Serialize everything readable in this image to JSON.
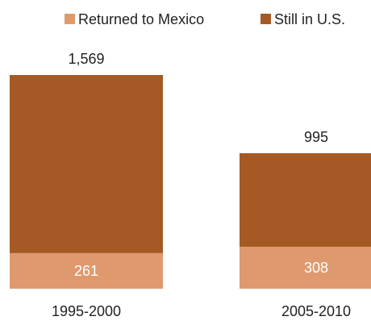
{
  "colors": {
    "returned": "#DE9A6E",
    "still": "#A55A26",
    "text": "#222222",
    "inside_text": "#FFFFFF"
  },
  "chart_data": {
    "type": "bar",
    "stacked": true,
    "categories": [
      "1995-2000",
      "2005-2010"
    ],
    "series": [
      {
        "name": "Returned to Mexico",
        "values": [
          261,
          308
        ]
      },
      {
        "name": "Still in U.S.",
        "values": [
          1308,
          687
        ]
      }
    ],
    "data_labels": {
      "totals": [
        "1,569",
        "995"
      ],
      "returned": [
        "261",
        "308"
      ]
    },
    "legend_position": "top-right",
    "grid": false,
    "ylim": [
      0,
      1569
    ],
    "title": "",
    "xlabel": "",
    "ylabel": ""
  }
}
